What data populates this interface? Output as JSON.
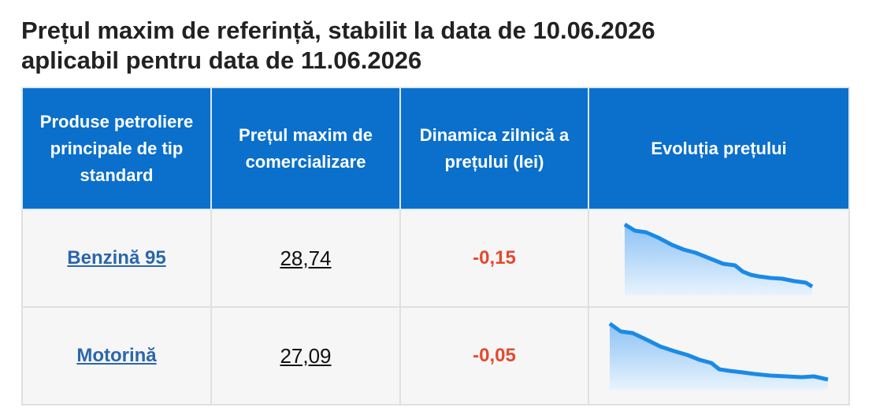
{
  "header": {
    "title": [
      "Prețul maxim de referință, stabilit la data de 10.06.2026",
      "aplicabil pentru data de 11.06.2026"
    ]
  },
  "table": {
    "columns": [
      "Produse petroliere principale de tip standard",
      "Prețul maxim de comercializare",
      "Dinamica zilnică a prețului (lei)",
      "Evoluția prețului"
    ],
    "rows": [
      [
        "Benzină 95",
        "28,74",
        "-0,15"
      ],
      [
        "Motorină",
        "27,09",
        "-0,05"
      ]
    ]
  }
}
